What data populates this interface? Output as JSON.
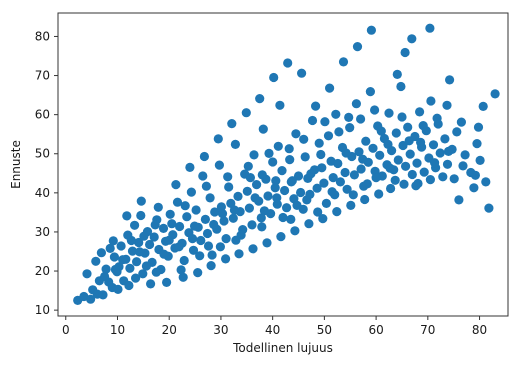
{
  "chart_data": {
    "type": "scatter",
    "title": "",
    "xlabel": "Todellinen lujuus",
    "ylabel": "Ennuste",
    "xlim": [
      -1.5,
      85.5
    ],
    "ylim": [
      8.5,
      86
    ],
    "xticks": [
      0,
      10,
      20,
      30,
      40,
      50,
      60,
      70,
      80
    ],
    "yticks": [
      10,
      20,
      30,
      40,
      50,
      60,
      70,
      80
    ],
    "grid": false,
    "legend": "none",
    "marker_color": "#1f77b4",
    "points": [
      [
        2.3,
        12.5
      ],
      [
        3.5,
        13.5
      ],
      [
        4.8,
        12.8
      ],
      [
        5.2,
        15.2
      ],
      [
        6.1,
        14.1
      ],
      [
        6.5,
        17.5
      ],
      [
        7.2,
        13.9
      ],
      [
        7.8,
        20.5
      ],
      [
        8.3,
        17.2
      ],
      [
        9.0,
        15.8
      ],
      [
        9.4,
        23.6
      ],
      [
        9.9,
        19.8
      ],
      [
        10.3,
        21.1
      ],
      [
        10.7,
        26.4
      ],
      [
        11.2,
        17.5
      ],
      [
        11.6,
        23.0
      ],
      [
        12.0,
        29.2
      ],
      [
        12.4,
        20.7
      ],
      [
        12.9,
        25.1
      ],
      [
        13.3,
        31.7
      ],
      [
        13.7,
        22.4
      ],
      [
        14.1,
        27.3
      ],
      [
        14.5,
        34.2
      ],
      [
        14.9,
        19.3
      ],
      [
        15.3,
        24.6
      ],
      [
        15.8,
        30.1
      ],
      [
        16.2,
        26.8
      ],
      [
        16.7,
        22.2
      ],
      [
        17.1,
        28.7
      ],
      [
        17.6,
        33.1
      ],
      [
        18.0,
        25.5
      ],
      [
        18.4,
        20.4
      ],
      [
        18.9,
        30.9
      ],
      [
        19.3,
        27.6
      ],
      [
        19.8,
        23.8
      ],
      [
        20.2,
        34.5
      ],
      [
        20.7,
        29.3
      ],
      [
        21.1,
        25.9
      ],
      [
        21.6,
        37.6
      ],
      [
        22.0,
        31.4
      ],
      [
        22.5,
        27.1
      ],
      [
        22.9,
        22.7
      ],
      [
        23.4,
        33.9
      ],
      [
        23.8,
        29.8
      ],
      [
        24.3,
        40.2
      ],
      [
        24.7,
        25.3
      ],
      [
        25.2,
        35.6
      ],
      [
        25.6,
        31.2
      ],
      [
        26.1,
        27.8
      ],
      [
        26.5,
        44.3
      ],
      [
        27.0,
        33.2
      ],
      [
        27.4,
        29.6
      ],
      [
        27.9,
        38.7
      ],
      [
        28.3,
        24.1
      ],
      [
        28.8,
        35.1
      ],
      [
        29.2,
        30.7
      ],
      [
        29.7,
        47.1
      ],
      [
        30.1,
        36.4
      ],
      [
        30.6,
        32.8
      ],
      [
        31.0,
        28.3
      ],
      [
        31.5,
        41.5
      ],
      [
        31.9,
        37.3
      ],
      [
        32.4,
        33.5
      ],
      [
        32.8,
        52.4
      ],
      [
        33.3,
        39.1
      ],
      [
        33.7,
        35.2
      ],
      [
        34.2,
        30.6
      ],
      [
        34.6,
        44.8
      ],
      [
        35.1,
        40.4
      ],
      [
        35.5,
        36.1
      ],
      [
        36.0,
        31.8
      ],
      [
        36.4,
        49.7
      ],
      [
        36.9,
        42.1
      ],
      [
        37.3,
        37.9
      ],
      [
        37.8,
        33.6
      ],
      [
        38.2,
        56.3
      ],
      [
        38.7,
        43.5
      ],
      [
        39.1,
        39.2
      ],
      [
        39.6,
        34.7
      ],
      [
        40.0,
        47.9
      ],
      [
        40.5,
        41.3
      ],
      [
        40.9,
        37.1
      ],
      [
        41.4,
        62.4
      ],
      [
        41.8,
        45.7
      ],
      [
        42.3,
        40.6
      ],
      [
        42.7,
        36.2
      ],
      [
        43.2,
        51.3
      ],
      [
        43.6,
        42.8
      ],
      [
        44.1,
        38.5
      ],
      [
        44.5,
        55.1
      ],
      [
        45.0,
        44.3
      ],
      [
        45.4,
        40.1
      ],
      [
        45.9,
        35.8
      ],
      [
        46.3,
        49.2
      ],
      [
        46.8,
        43.7
      ],
      [
        47.2,
        39.6
      ],
      [
        47.7,
        58.5
      ],
      [
        48.1,
        45.9
      ],
      [
        48.6,
        41.2
      ],
      [
        49.0,
        52.7
      ],
      [
        49.5,
        46.4
      ],
      [
        49.9,
        42.5
      ],
      [
        50.4,
        37.3
      ],
      [
        50.8,
        54.6
      ],
      [
        51.3,
        48.1
      ],
      [
        51.7,
        43.9
      ],
      [
        52.2,
        60.1
      ],
      [
        52.6,
        47.5
      ],
      [
        53.1,
        42.8
      ],
      [
        53.5,
        51.6
      ],
      [
        54.0,
        45.2
      ],
      [
        54.4,
        40.9
      ],
      [
        54.9,
        56.7
      ],
      [
        55.3,
        49.3
      ],
      [
        55.8,
        44.6
      ],
      [
        56.2,
        62.8
      ],
      [
        56.7,
        50.5
      ],
      [
        57.1,
        46.1
      ],
      [
        57.6,
        41.7
      ],
      [
        58.0,
        53.2
      ],
      [
        58.5,
        47.8
      ],
      [
        58.9,
        65.9
      ],
      [
        59.4,
        51.4
      ],
      [
        59.8,
        45.5
      ],
      [
        60.3,
        57.1
      ],
      [
        60.7,
        49.6
      ],
      [
        61.2,
        44.3
      ],
      [
        61.6,
        53.9
      ],
      [
        62.1,
        47.2
      ],
      [
        62.5,
        60.4
      ],
      [
        63.0,
        50.8
      ],
      [
        63.4,
        45.9
      ],
      [
        63.9,
        55.3
      ],
      [
        64.3,
        48.4
      ],
      [
        64.8,
        67.2
      ],
      [
        65.2,
        52.1
      ],
      [
        65.7,
        46.8
      ],
      [
        66.1,
        56.8
      ],
      [
        66.6,
        49.9
      ],
      [
        67.0,
        44.7
      ],
      [
        67.5,
        54.4
      ],
      [
        67.9,
        47.6
      ],
      [
        68.4,
        60.7
      ],
      [
        68.8,
        51.7
      ],
      [
        69.3,
        45.3
      ],
      [
        69.7,
        55.9
      ],
      [
        70.2,
        48.9
      ],
      [
        70.6,
        63.5
      ],
      [
        71.1,
        52.3
      ],
      [
        71.5,
        46.4
      ],
      [
        72.0,
        57.6
      ],
      [
        72.4,
        50.2
      ],
      [
        72.9,
        44.1
      ],
      [
        73.3,
        53.8
      ],
      [
        73.8,
        47.3
      ],
      [
        74.2,
        68.9
      ],
      [
        74.7,
        51.1
      ],
      [
        75.1,
        43.6
      ],
      [
        75.6,
        55.6
      ],
      [
        76.0,
        38.2
      ],
      [
        77.2,
        49.7
      ],
      [
        78.3,
        45.2
      ],
      [
        79.5,
        52.6
      ],
      [
        80.1,
        48.3
      ],
      [
        80.7,
        62.1
      ],
      [
        81.2,
        42.8
      ],
      [
        81.8,
        36.1
      ],
      [
        83.0,
        65.3
      ],
      [
        8.6,
        25.8
      ],
      [
        10.1,
        15.3
      ],
      [
        11.8,
        34.1
      ],
      [
        13.5,
        18.2
      ],
      [
        14.6,
        37.9
      ],
      [
        16.4,
        16.7
      ],
      [
        17.9,
        36.3
      ],
      [
        19.5,
        17.1
      ],
      [
        21.3,
        42.1
      ],
      [
        22.7,
        18.4
      ],
      [
        24.0,
        46.5
      ],
      [
        25.5,
        19.6
      ],
      [
        26.8,
        49.3
      ],
      [
        28.1,
        21.4
      ],
      [
        29.5,
        53.8
      ],
      [
        30.9,
        23.1
      ],
      [
        32.1,
        57.7
      ],
      [
        33.5,
        24.4
      ],
      [
        34.9,
        60.5
      ],
      [
        36.2,
        25.7
      ],
      [
        37.5,
        64.1
      ],
      [
        38.9,
        27.2
      ],
      [
        40.2,
        69.5
      ],
      [
        41.6,
        28.8
      ],
      [
        42.9,
        73.2
      ],
      [
        44.3,
        30.3
      ],
      [
        45.6,
        70.6
      ],
      [
        47.0,
        32.1
      ],
      [
        48.3,
        62.2
      ],
      [
        49.7,
        33.4
      ],
      [
        51.0,
        66.8
      ],
      [
        52.4,
        35.2
      ],
      [
        53.7,
        73.5
      ],
      [
        55.1,
        36.8
      ],
      [
        56.4,
        77.4
      ],
      [
        57.8,
        38.3
      ],
      [
        59.1,
        81.6
      ],
      [
        60.5,
        39.7
      ],
      [
        65.6,
        75.9
      ],
      [
        66.9,
        79.4
      ],
      [
        70.4,
        82.1
      ],
      [
        62.8,
        41.1
      ],
      [
        64.1,
        70.3
      ],
      [
        68.1,
        42.4
      ],
      [
        73.7,
        62.4
      ],
      [
        76.5,
        58.1
      ],
      [
        78.9,
        41.3
      ],
      [
        79.8,
        56.8
      ],
      [
        5.8,
        22.5
      ],
      [
        7.5,
        18.6
      ],
      [
        9.2,
        27.7
      ],
      [
        11.0,
        22.9
      ],
      [
        12.7,
        27.8
      ],
      [
        14.3,
        24.9
      ],
      [
        15.6,
        21.3
      ],
      [
        17.3,
        31.8
      ],
      [
        19.0,
        24.3
      ],
      [
        20.5,
        32.1
      ],
      [
        21.9,
        26.2
      ],
      [
        23.1,
        36.7
      ],
      [
        24.5,
        28.3
      ],
      [
        25.9,
        23.9
      ],
      [
        27.2,
        41.7
      ],
      [
        28.6,
        31.9
      ],
      [
        29.9,
        26.2
      ],
      [
        31.3,
        44.1
      ],
      [
        32.6,
        35.6
      ],
      [
        33.9,
        29.2
      ],
      [
        35.3,
        46.8
      ],
      [
        36.6,
        38.7
      ],
      [
        37.9,
        31.3
      ],
      [
        39.3,
        50.1
      ],
      [
        40.6,
        43.1
      ],
      [
        42.0,
        33.7
      ],
      [
        43.3,
        48.5
      ],
      [
        44.7,
        36.8
      ],
      [
        46.0,
        53.7
      ],
      [
        47.4,
        44.9
      ],
      [
        48.7,
        35.1
      ],
      [
        50.1,
        58.2
      ],
      [
        51.5,
        40.3
      ],
      [
        52.8,
        55.6
      ],
      [
        54.2,
        50.2
      ],
      [
        55.6,
        39.5
      ],
      [
        57.0,
        58.9
      ],
      [
        58.3,
        42.3
      ],
      [
        59.7,
        61.2
      ],
      [
        61.0,
        55.8
      ],
      [
        62.3,
        52.4
      ],
      [
        63.7,
        43.2
      ],
      [
        65.0,
        59.4
      ],
      [
        66.4,
        53.3
      ],
      [
        67.7,
        41.8
      ],
      [
        69.1,
        57.2
      ],
      [
        70.5,
        43.4
      ],
      [
        71.8,
        59.1
      ],
      [
        4.1,
        19.3
      ],
      [
        6.9,
        24.7
      ],
      [
        9.6,
        20.4
      ],
      [
        12.2,
        16.3
      ],
      [
        15.1,
        28.9
      ],
      [
        17.5,
        19.7
      ],
      [
        20.0,
        27.9
      ],
      [
        22.3,
        20.3
      ],
      [
        24.9,
        31.5
      ],
      [
        27.6,
        26.4
      ],
      [
        30.3,
        34.7
      ],
      [
        32.9,
        27.9
      ],
      [
        35.7,
        43.9
      ],
      [
        38.4,
        35.4
      ],
      [
        41.1,
        51.9
      ],
      [
        43.8,
        43.1
      ],
      [
        46.6,
        38.2
      ],
      [
        49.3,
        49.8
      ],
      [
        52.0,
        39.5
      ],
      [
        54.7,
        59.3
      ],
      [
        57.4,
        48.6
      ],
      [
        60.0,
        43.9
      ],
      [
        62.7,
        46.3
      ],
      [
        65.4,
        42.2
      ],
      [
        68.6,
        52.9
      ],
      [
        71.3,
        47.7
      ],
      [
        74.0,
        50.6
      ],
      [
        76.8,
        46.9
      ],
      [
        79.2,
        44.5
      ],
      [
        38.0,
        44.6
      ],
      [
        40.8,
        38.7
      ],
      [
        43.5,
        33.2
      ]
    ]
  }
}
